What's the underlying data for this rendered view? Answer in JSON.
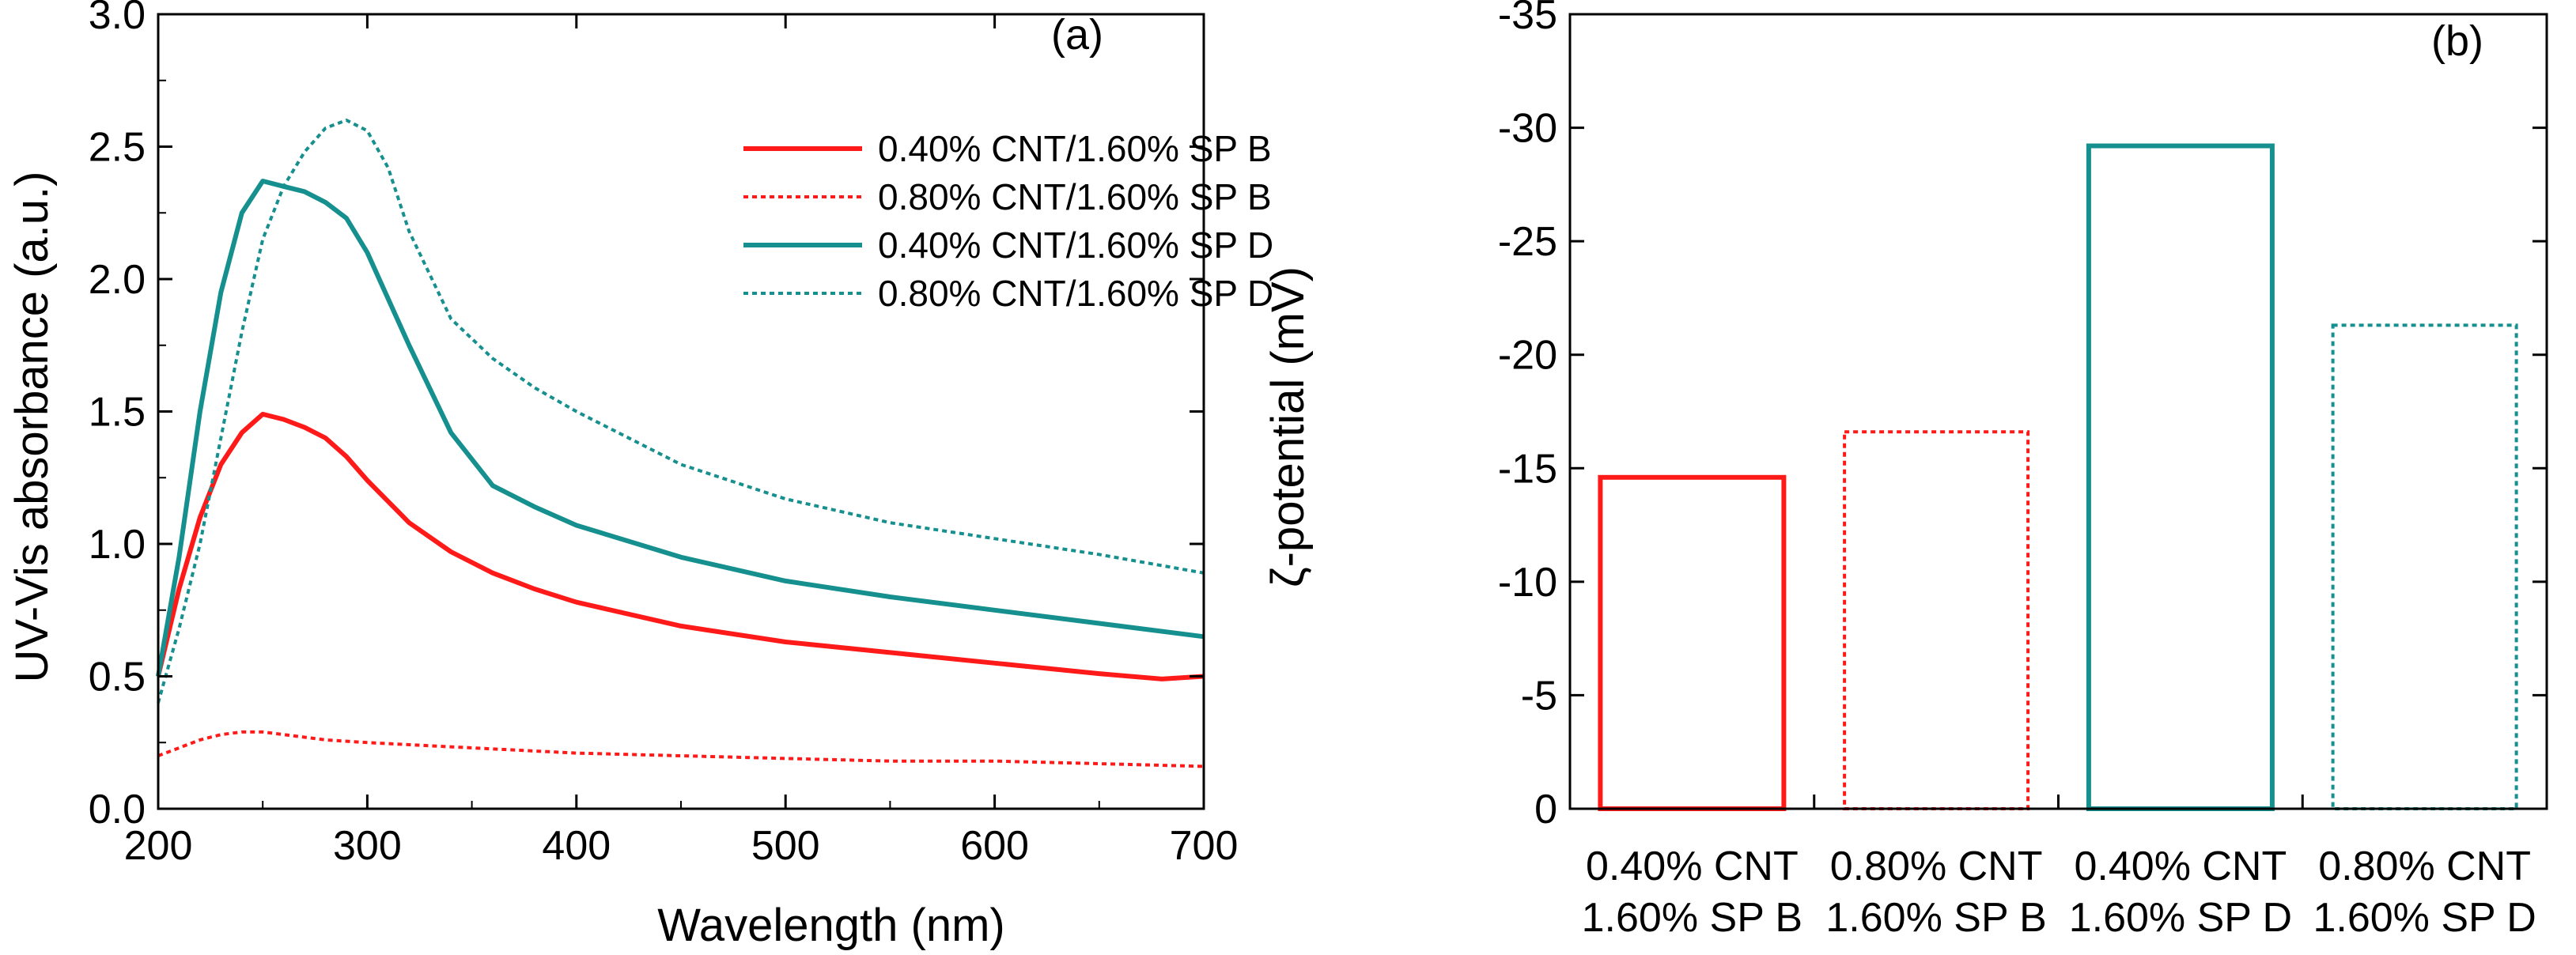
{
  "colors": {
    "red": "#ff1a1a",
    "teal": "#168f8f",
    "axis": "#000000"
  },
  "chart_data": [
    {
      "type": "line",
      "panel_label": "(a)",
      "xlabel": "Wavelength (nm)",
      "ylabel": "UV-Vis absorbance (a.u.)",
      "xlim": [
        200,
        700
      ],
      "ylim": [
        0,
        3.0
      ],
      "xticks": [
        200,
        300,
        400,
        500,
        600,
        700
      ],
      "yticks": [
        0.0,
        0.5,
        1.0,
        1.5,
        2.0,
        2.5,
        3.0
      ],
      "ytick_labels": [
        "0.0",
        "0.5",
        "1.0",
        "1.5",
        "2.0",
        "2.5",
        "3.0"
      ],
      "legend_position": "top-right",
      "series": [
        {
          "name": "0.40% CNT/1.60% SP B",
          "color": "#ff1a1a",
          "style": "solid",
          "x": [
            200,
            210,
            220,
            230,
            240,
            250,
            260,
            270,
            280,
            290,
            300,
            320,
            340,
            360,
            380,
            400,
            450,
            500,
            550,
            600,
            650,
            680,
            700
          ],
          "y": [
            0.5,
            0.83,
            1.1,
            1.3,
            1.42,
            1.49,
            1.47,
            1.44,
            1.4,
            1.33,
            1.24,
            1.08,
            0.97,
            0.89,
            0.83,
            0.78,
            0.69,
            0.63,
            0.59,
            0.55,
            0.51,
            0.49,
            0.5
          ]
        },
        {
          "name": "0.80% CNT/1.60% SP B",
          "color": "#ff1a1a",
          "style": "dotted",
          "x": [
            200,
            210,
            220,
            230,
            240,
            250,
            260,
            280,
            300,
            350,
            400,
            450,
            500,
            550,
            600,
            650,
            700
          ],
          "y": [
            0.2,
            0.23,
            0.26,
            0.28,
            0.29,
            0.29,
            0.28,
            0.26,
            0.25,
            0.23,
            0.21,
            0.2,
            0.19,
            0.18,
            0.18,
            0.17,
            0.16
          ]
        },
        {
          "name": "0.40% CNT/1.60% SP D",
          "color": "#168f8f",
          "style": "solid",
          "x": [
            200,
            210,
            220,
            230,
            240,
            250,
            260,
            270,
            280,
            290,
            300,
            320,
            340,
            360,
            380,
            400,
            450,
            500,
            550,
            600,
            650,
            700
          ],
          "y": [
            0.5,
            0.95,
            1.5,
            1.95,
            2.25,
            2.37,
            2.35,
            2.33,
            2.29,
            2.23,
            2.1,
            1.75,
            1.42,
            1.22,
            1.14,
            1.07,
            0.95,
            0.86,
            0.8,
            0.75,
            0.7,
            0.65
          ]
        },
        {
          "name": "0.80% CNT/1.60% SP D",
          "color": "#168f8f",
          "style": "dotted",
          "x": [
            200,
            210,
            220,
            230,
            240,
            250,
            260,
            270,
            280,
            290,
            300,
            310,
            320,
            340,
            360,
            380,
            400,
            450,
            500,
            550,
            600,
            650,
            700
          ],
          "y": [
            0.4,
            0.68,
            1.0,
            1.4,
            1.8,
            2.15,
            2.35,
            2.48,
            2.57,
            2.6,
            2.56,
            2.42,
            2.18,
            1.85,
            1.7,
            1.59,
            1.5,
            1.3,
            1.17,
            1.08,
            1.02,
            0.96,
            0.89
          ]
        }
      ]
    },
    {
      "type": "bar",
      "panel_label": "(b)",
      "ylabel": "ζ-potential (mV)",
      "ylim": [
        0,
        -35
      ],
      "yticks": [
        0,
        -5,
        -10,
        -15,
        -20,
        -25,
        -30,
        -35
      ],
      "ytick_labels": [
        "0",
        "-5",
        "-10",
        "-15",
        "-20",
        "-25",
        "-30",
        "-35"
      ],
      "categories": [
        [
          "0.40% CNT",
          "1.60% SP B"
        ],
        [
          "0.80% CNT",
          "1.60% SP B"
        ],
        [
          "0.40% CNT",
          "1.60% SP D"
        ],
        [
          "0.80% CNT",
          "1.60% SP D"
        ]
      ],
      "values": [
        -14.6,
        -16.6,
        -29.2,
        -21.3
      ],
      "bar_colors": [
        "#ff1a1a",
        "#ff1a1a",
        "#168f8f",
        "#168f8f"
      ],
      "bar_styles": [
        "solid",
        "dotted",
        "solid",
        "dotted"
      ]
    }
  ]
}
